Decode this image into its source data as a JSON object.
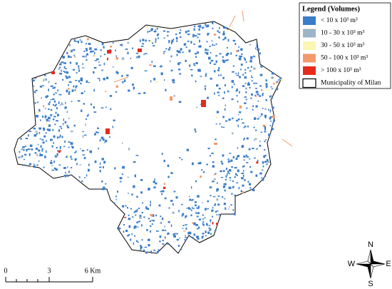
{
  "legend": {
    "title": "Legend (Volumes)",
    "items": [
      {
        "label": "< 10 x 10³  m³",
        "color": "#3a7dc9"
      },
      {
        "label": "10 - 30 x 10³  m³",
        "color": "#9db5c6"
      },
      {
        "label": "30 - 50 x 10³  m³",
        "color": "#fbf6b2"
      },
      {
        "label": "50 - 100 x 10³  m³",
        "color": "#f4996c"
      },
      {
        "label": "> 100 x 10³  m³",
        "color": "#e62a1c"
      },
      {
        "label": "Municipality of Milan",
        "color": "#ffffff"
      }
    ]
  },
  "scale_bar": {
    "labels": [
      "0",
      "3",
      "6 Km"
    ]
  },
  "compass": {
    "n": "N",
    "e": "E",
    "s": "S",
    "w": "W"
  }
}
